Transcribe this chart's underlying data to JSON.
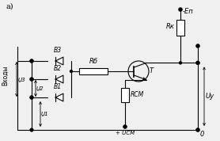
{
  "title": "a)",
  "bg_color": "#f0f0f0",
  "line_color": "#000000",
  "label_Vkhody": "Входы",
  "label_B1": "B1",
  "label_B2": "B2",
  "label_B3": "B3",
  "label_Rb": "Rб",
  "label_Rk": "Rк",
  "label_Rsm": "RСМ",
  "label_T": "T",
  "label_En": "-Eп",
  "label_Uy": "Uу",
  "label_Ux1": "Ṳ1",
  "label_Ux2": "Ṳ2",
  "label_Ux3": "Ṳ3",
  "label_Ucm": "+ UСМ",
  "label_0": "0"
}
